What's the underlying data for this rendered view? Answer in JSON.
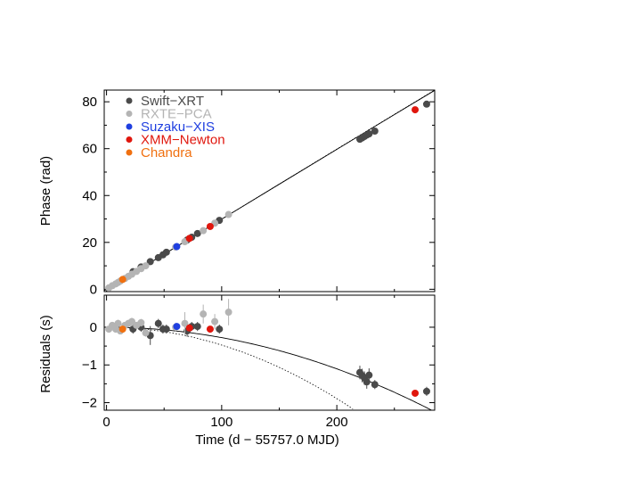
{
  "chart_data": [
    {
      "type": "scatter",
      "title": "",
      "xlabel": "Time (d − 55757.0 MJD)",
      "ylabel": "Phase (rad)",
      "xlim": [
        -2,
        285
      ],
      "ylim": [
        -1,
        85
      ],
      "x_ticks": [
        0,
        100,
        200
      ],
      "y_ticks": [
        0,
        20,
        40,
        60,
        80
      ],
      "grid": false,
      "legend_position": "top-left",
      "series": [
        {
          "name": "Swift−XRT",
          "color": "#4a4a4a",
          "x": [
            23,
            30,
            38,
            45,
            49,
            52,
            70,
            74,
            79,
            98,
            220,
            222,
            224,
            226,
            228,
            233,
            278
          ],
          "y": [
            7.5,
            9.5,
            11.8,
            13.5,
            14.7,
            15.8,
            21.0,
            22.2,
            23.8,
            29.4,
            64.0,
            64.6,
            65.2,
            65.8,
            66.3,
            67.5,
            79.0
          ]
        },
        {
          "name": "RXTE−PCA",
          "color": "#b4b4b4",
          "x": [
            2,
            5,
            8,
            10,
            12,
            16,
            19,
            22,
            26,
            30,
            34,
            60,
            68,
            84,
            94,
            106
          ],
          "y": [
            0.6,
            1.5,
            2.3,
            2.9,
            3.5,
            4.6,
            5.5,
            6.4,
            7.6,
            8.8,
            10.0,
            18.0,
            20.3,
            25.0,
            28.2,
            31.9
          ]
        },
        {
          "name": "Suzaku−XIS",
          "color": "#1f3fe0",
          "x": [
            61
          ],
          "y": [
            18.2
          ]
        },
        {
          "name": "XMM−Newton",
          "color": "#e0160d",
          "x": [
            72,
            90,
            268
          ],
          "y": [
            21.7,
            26.8,
            76.6
          ]
        },
        {
          "name": "Chandra",
          "color": "#f07010",
          "x": [
            14
          ],
          "y": [
            4.2
          ]
        }
      ],
      "model_curves": [
        {
          "style": "solid",
          "x": [
            -2,
            50,
            100,
            150,
            200,
            250,
            285
          ],
          "y": [
            -0.6,
            14.96,
            29.91,
            44.83,
            59.71,
            74.54,
            84.88
          ]
        },
        {
          "style": "dotted",
          "x": [
            -2,
            100,
            200,
            285
          ],
          "y": [
            -0.6,
            29.91,
            59.81,
            85.2
          ]
        }
      ]
    },
    {
      "type": "scatter",
      "title": "",
      "xlabel": "Time (d − 55757.0 MJD)",
      "ylabel": "Residuals (s)",
      "xlim": [
        -2,
        285
      ],
      "ylim": [
        -2.2,
        0.85
      ],
      "x_ticks": [
        0,
        100,
        200
      ],
      "x_tick_labels": [
        "0",
        "100",
        "200"
      ],
      "y_ticks": [
        -2,
        -1,
        0
      ],
      "y_tick_labels": [
        "−2",
        "−1",
        "0"
      ],
      "grid": false,
      "series": [
        {
          "name": "Swift−XRT",
          "color": "#4a4a4a",
          "x": [
            23,
            30,
            38,
            45,
            49,
            52,
            70,
            74,
            79,
            98,
            220,
            222,
            224,
            226,
            228,
            233,
            278
          ],
          "y": [
            -0.05,
            0.0,
            -0.22,
            0.1,
            -0.05,
            -0.05,
            -0.1,
            0.02,
            0.02,
            -0.05,
            -1.2,
            -1.28,
            -1.35,
            -1.45,
            -1.27,
            -1.52,
            -1.7
          ],
          "err": [
            0.12,
            0.12,
            0.25,
            0.12,
            0.12,
            0.12,
            0.15,
            0.12,
            0.12,
            0.12,
            0.18,
            0.18,
            0.18,
            0.18,
            0.18,
            0.12,
            0.12
          ]
        },
        {
          "name": "RXTE−PCA",
          "color": "#b4b4b4",
          "x": [
            2,
            5,
            8,
            10,
            12,
            16,
            19,
            22,
            26,
            30,
            34,
            60,
            68,
            84,
            94,
            106
          ],
          "y": [
            -0.05,
            0.05,
            -0.05,
            0.1,
            -0.1,
            0.05,
            0.1,
            0.15,
            0.05,
            0.12,
            -0.15,
            0.0,
            0.1,
            0.35,
            0.15,
            0.4
          ],
          "err": [
            0.08,
            0.08,
            0.08,
            0.1,
            0.08,
            0.08,
            0.1,
            0.1,
            0.08,
            0.1,
            0.1,
            0.12,
            0.3,
            0.25,
            0.2,
            0.35
          ]
        },
        {
          "name": "Suzaku−XIS",
          "color": "#1f3fe0",
          "x": [
            61
          ],
          "y": [
            0.02
          ],
          "err": [
            0.06
          ]
        },
        {
          "name": "XMM−Newton",
          "color": "#e0160d",
          "x": [
            72,
            90,
            268
          ],
          "y": [
            -0.02,
            -0.05,
            -1.75
          ],
          "err": [
            0.05,
            0.06,
            0.06
          ]
        },
        {
          "name": "Chandra",
          "color": "#f07010",
          "x": [
            14
          ],
          "y": [
            -0.05
          ],
          "err": [
            0.05
          ]
        }
      ],
      "model_curves": [
        {
          "style": "solid",
          "curvature": 2.76e-05
        },
        {
          "style": "dotted",
          "curvature": 4.73e-05
        }
      ]
    }
  ]
}
